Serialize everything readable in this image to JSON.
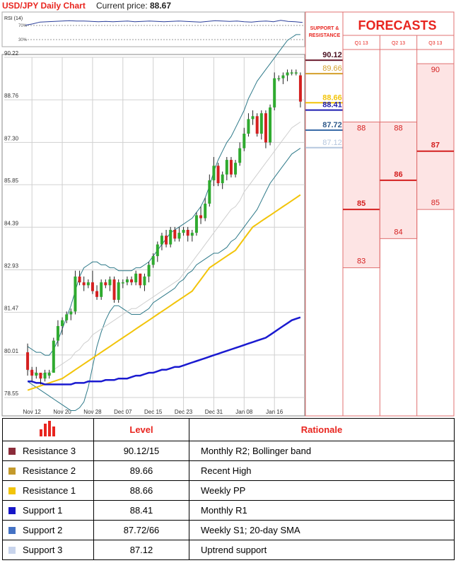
{
  "header": {
    "title": "USD/JPY Daily Chart",
    "price_label": "Current price:",
    "price_value": "88.67"
  },
  "rsi": {
    "label": "RSI (14)",
    "levels": [
      "70%",
      "30%"
    ],
    "values": [
      62,
      66,
      71,
      72,
      73,
      74,
      75,
      74,
      74,
      73,
      72,
      73,
      72,
      73,
      74,
      72,
      73,
      74,
      73,
      72,
      73,
      74,
      73,
      72,
      71,
      73,
      75,
      74,
      73,
      74,
      72,
      71,
      73,
      74,
      72,
      76,
      73,
      72,
      70
    ]
  },
  "chart_data": {
    "type": "candlestick",
    "title": "USD/JPY Daily Chart",
    "y_ticks": [
      "90.22",
      "88.76",
      "87.30",
      "85.85",
      "84.39",
      "82.93",
      "81.47",
      "80.01",
      "78.55"
    ],
    "x_ticks": [
      "Nov 12",
      "Nov 20",
      "Nov 28",
      "Dec 07",
      "Dec 15",
      "Dec 23",
      "Dec 31",
      "Jan 08",
      "Jan 16"
    ],
    "ylim": [
      78.55,
      90.22
    ],
    "candles": [
      [
        80.1,
        80.4,
        79.3,
        79.5
      ],
      [
        79.5,
        79.6,
        79.1,
        79.3
      ],
      [
        79.3,
        79.6,
        79.2,
        79.4
      ],
      [
        79.4,
        79.4,
        79.0,
        79.2
      ],
      [
        79.2,
        79.5,
        79.1,
        79.4
      ],
      [
        79.3,
        79.5,
        79.2,
        79.4
      ],
      [
        79.4,
        80.6,
        79.4,
        80.5
      ],
      [
        80.5,
        81.2,
        80.3,
        81.0
      ],
      [
        81.0,
        81.3,
        80.7,
        81.2
      ],
      [
        81.2,
        81.5,
        81.1,
        81.4
      ],
      [
        81.4,
        81.6,
        81.2,
        81.5
      ],
      [
        81.5,
        82.9,
        81.4,
        82.7
      ],
      [
        82.7,
        82.9,
        82.4,
        82.5
      ],
      [
        82.5,
        82.7,
        82.2,
        82.4
      ],
      [
        82.4,
        82.6,
        82.3,
        82.5
      ],
      [
        82.5,
        82.9,
        82.1,
        82.2
      ],
      [
        82.2,
        82.4,
        81.9,
        82.0
      ],
      [
        82.0,
        82.6,
        81.9,
        82.5
      ],
      [
        82.5,
        82.6,
        82.3,
        82.4
      ],
      [
        82.4,
        82.7,
        82.2,
        82.6
      ],
      [
        82.6,
        82.7,
        81.8,
        81.9
      ],
      [
        81.9,
        82.6,
        81.8,
        82.5
      ],
      [
        82.5,
        82.6,
        82.3,
        82.5
      ],
      [
        82.5,
        82.7,
        82.4,
        82.6
      ],
      [
        82.6,
        82.7,
        82.4,
        82.5
      ],
      [
        82.5,
        82.9,
        82.4,
        82.8
      ],
      [
        82.8,
        82.8,
        82.3,
        82.4
      ],
      [
        82.4,
        82.8,
        82.2,
        82.7
      ],
      [
        82.7,
        83.2,
        82.5,
        83.1
      ],
      [
        83.1,
        83.5,
        83.0,
        83.4
      ],
      [
        83.4,
        83.9,
        83.2,
        83.8
      ],
      [
        83.8,
        84.2,
        83.6,
        84.1
      ],
      [
        84.1,
        84.3,
        83.7,
        83.8
      ],
      [
        83.8,
        84.4,
        83.7,
        84.3
      ],
      [
        84.3,
        84.4,
        83.9,
        84.0
      ],
      [
        84.0,
        84.4,
        83.9,
        84.2
      ],
      [
        84.2,
        84.4,
        84.1,
        84.3
      ],
      [
        84.3,
        84.4,
        83.9,
        84.1
      ],
      [
        84.1,
        84.3,
        83.9,
        84.2
      ],
      [
        84.2,
        84.9,
        84.1,
        84.8
      ],
      [
        84.8,
        85.1,
        84.5,
        84.7
      ],
      [
        84.7,
        85.4,
        84.6,
        85.2
      ],
      [
        85.2,
        86.2,
        85.1,
        86.0
      ],
      [
        86.0,
        86.8,
        85.8,
        86.5
      ],
      [
        86.5,
        86.6,
        85.8,
        85.9
      ],
      [
        85.9,
        86.3,
        85.7,
        86.2
      ],
      [
        86.2,
        86.8,
        86.0,
        86.7
      ],
      [
        86.7,
        86.8,
        86.1,
        86.2
      ],
      [
        86.2,
        86.7,
        86.1,
        86.6
      ],
      [
        86.6,
        87.3,
        86.5,
        87.1
      ],
      [
        87.1,
        87.8,
        87.0,
        87.6
      ],
      [
        87.6,
        88.3,
        87.5,
        88.1
      ],
      [
        88.1,
        88.4,
        87.9,
        88.2
      ],
      [
        88.2,
        88.3,
        87.5,
        87.6
      ],
      [
        87.6,
        88.4,
        87.4,
        88.3
      ],
      [
        88.3,
        88.4,
        87.1,
        87.3
      ],
      [
        87.3,
        88.6,
        87.2,
        88.5
      ],
      [
        88.5,
        89.7,
        88.4,
        89.5
      ],
      [
        89.5,
        89.6,
        89.4,
        89.5
      ],
      [
        89.5,
        89.7,
        89.3,
        89.6
      ],
      [
        89.6,
        89.8,
        89.4,
        89.7
      ],
      [
        89.7,
        89.8,
        89.6,
        89.7
      ],
      [
        89.7,
        89.8,
        89.6,
        89.7
      ],
      [
        89.6,
        89.7,
        88.5,
        88.7
      ]
    ],
    "sma": [
      79.5,
      79.4,
      79.4,
      79.3,
      79.4,
      79.4,
      79.5,
      79.6,
      79.7,
      79.8,
      79.9,
      80.1,
      80.2,
      80.4,
      80.5,
      80.7,
      80.8,
      80.9,
      81.0,
      81.1,
      81.2,
      81.3,
      81.4,
      81.5,
      81.6,
      81.6,
      81.7,
      81.8,
      81.9,
      82.0,
      82.1,
      82.2,
      82.3,
      82.4,
      82.5,
      82.6,
      82.8,
      83.0,
      83.2,
      83.4,
      83.6,
      83.8,
      84.0,
      84.2,
      84.4,
      84.6,
      84.8,
      85.0,
      85.1,
      85.3,
      85.6,
      85.8,
      86.0,
      86.2,
      86.4,
      86.6,
      86.8,
      87.0,
      87.2,
      87.4,
      87.6,
      87.8,
      87.9,
      88.0
    ],
    "bb_upper": [
      80.3,
      80.2,
      80.1,
      80.1,
      80.0,
      80.0,
      80.2,
      80.5,
      80.9,
      81.3,
      81.7,
      82.2,
      82.7,
      83.0,
      83.1,
      83.2,
      83.2,
      83.1,
      83.1,
      83.0,
      83.0,
      82.9,
      82.9,
      82.9,
      82.9,
      83.0,
      83.0,
      83.1,
      83.2,
      83.4,
      83.6,
      83.8,
      84.0,
      84.2,
      84.3,
      84.4,
      84.5,
      84.6,
      84.7,
      84.9,
      85.1,
      85.4,
      85.8,
      86.3,
      86.7,
      87.0,
      87.3,
      87.5,
      87.8,
      88.1,
      88.4,
      88.8,
      89.1,
      89.4,
      89.6,
      89.8,
      90.0,
      90.2,
      90.4,
      90.6,
      90.8,
      90.9,
      91.0,
      91.0
    ],
    "bb_lower": [
      79.1,
      79.0,
      78.9,
      78.8,
      78.7,
      78.6,
      78.5,
      78.4,
      78.3,
      78.2,
      78.1,
      78.1,
      78.2,
      78.4,
      78.9,
      79.6,
      80.3,
      80.8,
      81.2,
      81.5,
      81.7,
      81.7,
      81.6,
      81.5,
      81.4,
      81.4,
      81.4,
      81.5,
      81.6,
      81.8,
      81.9,
      82.0,
      82.1,
      82.2,
      82.3,
      82.5,
      82.6,
      82.8,
      82.9,
      83.1,
      83.2,
      83.3,
      83.4,
      83.5,
      83.5,
      83.6,
      83.7,
      83.9,
      84.0,
      84.2,
      84.4,
      84.6,
      84.8,
      85.0,
      85.3,
      85.6,
      85.9,
      86.1,
      86.3,
      86.5,
      86.7,
      86.9,
      87.0,
      87.1
    ],
    "ema_yellow": [
      78.8,
      78.85,
      78.9,
      78.95,
      79.0,
      79.05,
      79.1,
      79.15,
      79.2,
      79.3,
      79.4,
      79.5,
      79.6,
      79.7,
      79.8,
      79.9,
      80.0,
      80.1,
      80.2,
      80.3,
      80.4,
      80.5,
      80.6,
      80.7,
      80.8,
      80.9,
      81.0,
      81.1,
      81.2,
      81.3,
      81.4,
      81.5,
      81.6,
      81.7,
      81.8,
      81.9,
      82.0,
      82.1,
      82.2,
      82.4,
      82.6,
      82.8,
      83.0,
      83.1,
      83.2,
      83.3,
      83.4,
      83.5,
      83.6,
      83.8,
      84.0,
      84.2,
      84.4,
      84.5,
      84.6,
      84.7,
      84.8,
      84.9,
      85.0,
      85.1,
      85.2,
      85.3,
      85.4,
      85.5
    ],
    "ema_blue": [
      79.1,
      79.1,
      79.05,
      79.05,
      79.0,
      79.0,
      79.0,
      79.0,
      79.0,
      79.0,
      79.0,
      79.05,
      79.05,
      79.05,
      79.1,
      79.1,
      79.1,
      79.1,
      79.15,
      79.15,
      79.15,
      79.2,
      79.2,
      79.2,
      79.25,
      79.3,
      79.3,
      79.35,
      79.4,
      79.4,
      79.45,
      79.5,
      79.5,
      79.55,
      79.6,
      79.6,
      79.65,
      79.7,
      79.75,
      79.8,
      79.85,
      79.9,
      79.95,
      80.0,
      80.05,
      80.1,
      80.15,
      80.2,
      80.25,
      80.3,
      80.35,
      80.4,
      80.45,
      80.5,
      80.55,
      80.6,
      80.7,
      80.8,
      80.9,
      81.0,
      81.1,
      81.2,
      81.25,
      81.3
    ]
  },
  "levels_panel": {
    "header_line1": "SUPPORT &",
    "header_line2": "RESISTANCE",
    "items": [
      {
        "value": "90.12",
        "num": 90.12,
        "color": "#6b1b2e"
      },
      {
        "value": "89.66",
        "num": 89.66,
        "color": "#d4a02b"
      },
      {
        "value": "88.66",
        "num": 88.66,
        "color": "#f2c40a"
      },
      {
        "value": "88.41",
        "num": 88.41,
        "color": "#1c1cb0"
      },
      {
        "value": "87.72",
        "num": 87.72,
        "color": "#3a6ca8"
      },
      {
        "value": "87.12",
        "num": 87.12,
        "color": "#b5c7de"
      }
    ]
  },
  "forecasts": {
    "title": "FORECASTS",
    "quarters": [
      {
        "label": "Q1 13",
        "high": "88",
        "high_num": 88,
        "mid": "85",
        "mid_num": 85,
        "low": "83",
        "low_num": 83
      },
      {
        "label": "Q2 13",
        "high": "88",
        "high_num": 88,
        "mid": "86",
        "mid_num": 86,
        "low": "84",
        "low_num": 84
      },
      {
        "label": "Q3 13",
        "high": "90",
        "high_num": 90,
        "mid": "87",
        "mid_num": 87,
        "low": "85",
        "low_num": 85
      }
    ]
  },
  "table": {
    "col_level": "Level",
    "col_rationale": "Rationale",
    "rows": [
      {
        "name": "Resistance 3",
        "level": "90.12/15",
        "rationale": "Monthly R2; Bollinger band",
        "color": "#8b2c3a"
      },
      {
        "name": "Resistance 2",
        "level": "89.66",
        "rationale": "Recent High",
        "color": "#c49a2c"
      },
      {
        "name": "Resistance 1",
        "level": "88.66",
        "rationale": "Weekly PP",
        "color": "#f2c40a"
      },
      {
        "name": "Support 1",
        "level": "88.41",
        "rationale": "Monthly R1",
        "color": "#1616c8"
      },
      {
        "name": "Support 2",
        "level": "87.72/66",
        "rationale": "Weekly S1; 20-day SMA",
        "color": "#4472c4"
      },
      {
        "name": "Support 3",
        "level": "87.12",
        "rationale": "Uptrend support",
        "color": "#c8d4ec"
      }
    ]
  }
}
